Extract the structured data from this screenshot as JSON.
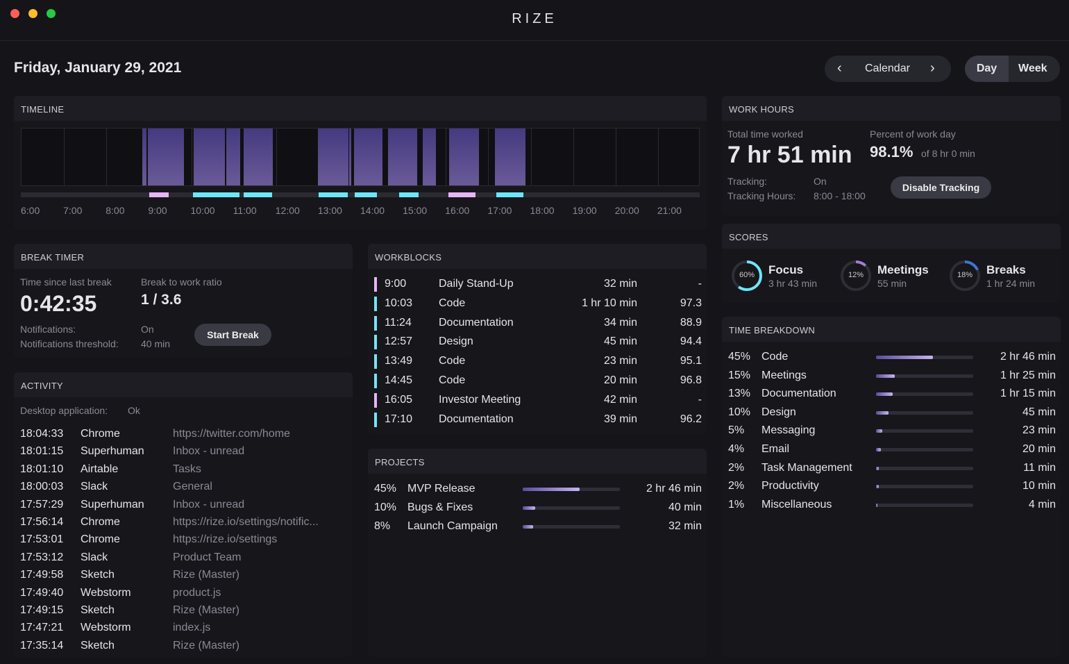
{
  "app": {
    "title": "RIZE"
  },
  "header": {
    "date": "Friday, January 29, 2021",
    "calendar": "Calendar",
    "day": "Day",
    "week": "Week"
  },
  "timeline": {
    "title": "TIMELINE",
    "hours": [
      "6:00",
      "7:00",
      "8:00",
      "9:00",
      "10:00",
      "11:00",
      "12:00",
      "13:00",
      "14:00",
      "15:00",
      "16:00",
      "17:00",
      "18:00",
      "19:00",
      "20:00",
      "21:00"
    ],
    "blocks": [
      [
        8.85,
        8.95
      ],
      [
        8.98,
        9.83
      ],
      [
        10.05,
        10.8
      ],
      [
        10.83,
        11.15
      ],
      [
        11.23,
        11.93
      ],
      [
        12.98,
        13.7
      ],
      [
        13.73,
        13.77
      ],
      [
        13.83,
        14.5
      ],
      [
        14.63,
        15.33
      ],
      [
        15.45,
        15.77
      ],
      [
        16.07,
        16.78
      ],
      [
        17.15,
        17.87
      ]
    ],
    "events": [
      {
        "start": 9.02,
        "end": 9.48,
        "type": "meeting"
      },
      {
        "start": 10.05,
        "end": 11.15,
        "type": "focus"
      },
      {
        "start": 11.25,
        "end": 11.92,
        "type": "focus"
      },
      {
        "start": 13.02,
        "end": 13.7,
        "type": "focus"
      },
      {
        "start": 13.87,
        "end": 14.4,
        "type": "focus"
      },
      {
        "start": 14.92,
        "end": 15.37,
        "type": "focus"
      },
      {
        "start": 16.07,
        "end": 16.72,
        "type": "meeting"
      },
      {
        "start": 17.2,
        "end": 17.85,
        "type": "focus"
      }
    ],
    "colors": {
      "focus": "#6ee6f7",
      "meeting": "#e6b6f4",
      "block": "#4f4388"
    }
  },
  "work_hours": {
    "title": "WORK HOURS",
    "total_label": "Total time worked",
    "total": "7 hr 51 min",
    "percent_label": "Percent of work day",
    "percent": "98.1%",
    "of": "of 8 hr 0 min",
    "tracking_label": "Tracking:",
    "tracking": "On",
    "hours_label": "Tracking Hours:",
    "hours": "8:00 - 18:00",
    "button": "Disable Tracking"
  },
  "scores": {
    "title": "SCORES",
    "items": [
      {
        "pct": "60%",
        "value": 60,
        "name": "Focus",
        "time": "3 hr 43 min",
        "color": "#6ee6f7"
      },
      {
        "pct": "12%",
        "value": 12,
        "name": "Meetings",
        "time": "55 min",
        "color": "#a57ad8"
      },
      {
        "pct": "18%",
        "value": 18,
        "name": "Breaks",
        "time": "1 hr 24 min",
        "color": "#3f74d6"
      }
    ]
  },
  "break_timer": {
    "title": "BREAK TIMER",
    "since_label": "Time since last break",
    "since": "0:42:35",
    "ratio_label": "Break to work ratio",
    "ratio": "1 / 3.6",
    "notif_label": "Notifications:",
    "notif": "On",
    "thresh_label": "Notifications threshold:",
    "thresh": "40 min",
    "button": "Start Break"
  },
  "workblocks": {
    "title": "WORKBLOCKS",
    "rows": [
      {
        "time": "9:00",
        "name": "Daily Stand-Up",
        "dur": "32 min",
        "score": "-",
        "type": "meeting"
      },
      {
        "time": "10:03",
        "name": "Code",
        "dur": "1 hr 10 min",
        "score": "97.3",
        "type": "focus"
      },
      {
        "time": "11:24",
        "name": "Documentation",
        "dur": "34 min",
        "score": "88.9",
        "type": "focus"
      },
      {
        "time": "12:57",
        "name": "Design",
        "dur": "45 min",
        "score": "94.4",
        "type": "focus"
      },
      {
        "time": "13:49",
        "name": "Code",
        "dur": "23 min",
        "score": "95.1",
        "type": "focus"
      },
      {
        "time": "14:45",
        "name": "Code",
        "dur": "20 min",
        "score": "96.8",
        "type": "focus"
      },
      {
        "time": "16:05",
        "name": "Investor Meeting",
        "dur": "42 min",
        "score": "-",
        "type": "meeting"
      },
      {
        "time": "17:10",
        "name": "Documentation",
        "dur": "39 min",
        "score": "96.2",
        "type": "focus"
      }
    ]
  },
  "projects": {
    "title": "PROJECTS",
    "rows": [
      {
        "pct": "45%",
        "value": 45,
        "name": "MVP Release",
        "dur": "2 hr 46 min"
      },
      {
        "pct": "10%",
        "value": 10,
        "name": "Bugs & Fixes",
        "dur": "40 min"
      },
      {
        "pct": "8%",
        "value": 8,
        "name": "Launch Campaign",
        "dur": "32 min"
      }
    ]
  },
  "activity": {
    "title": "ACTIVITY",
    "desktop_label": "Desktop application:",
    "desktop": "Ok",
    "rows": [
      [
        "18:04:33",
        "Chrome",
        "https://twitter.com/home"
      ],
      [
        "18:01:15",
        "Superhuman",
        "Inbox - unread"
      ],
      [
        "18:01:10",
        "Airtable",
        "Tasks"
      ],
      [
        "18:00:03",
        "Slack",
        "General"
      ],
      [
        "17:57:29",
        "Superhuman",
        "Inbox - unread"
      ],
      [
        "17:56:14",
        "Chrome",
        "https://rize.io/settings/notific..."
      ],
      [
        "17:53:01",
        "Chrome",
        "https://rize.io/settings"
      ],
      [
        "17:53:12",
        "Slack",
        "Product Team"
      ],
      [
        "17:49:58",
        "Sketch",
        "Rize (Master)"
      ],
      [
        "17:49:40",
        "Webstorm",
        "product.js"
      ],
      [
        "17:49:15",
        "Sketch",
        "Rize (Master)"
      ],
      [
        "17:47:21",
        "Webstorm",
        "index.js"
      ],
      [
        "17:35:14",
        "Sketch",
        "Rize (Master)"
      ]
    ]
  },
  "breakdown": {
    "title": "TIME BREAKDOWN",
    "rows": [
      {
        "pct": "45%",
        "value": 45,
        "name": "Code",
        "dur": "2 hr 46 min"
      },
      {
        "pct": "15%",
        "value": 15,
        "name": "Meetings",
        "dur": "1 hr 25 min"
      },
      {
        "pct": "13%",
        "value": 13,
        "name": "Documentation",
        "dur": "1 hr 15 min"
      },
      {
        "pct": "10%",
        "value": 10,
        "name": "Design",
        "dur": "45 min"
      },
      {
        "pct": "5%",
        "value": 5,
        "name": "Messaging",
        "dur": "23 min"
      },
      {
        "pct": "4%",
        "value": 4,
        "name": "Email",
        "dur": "20 min"
      },
      {
        "pct": "2%",
        "value": 2,
        "name": "Task Management",
        "dur": "11 min"
      },
      {
        "pct": "2%",
        "value": 2,
        "name": "Productivity",
        "dur": "10 min"
      },
      {
        "pct": "1%",
        "value": 1,
        "name": "Miscellaneous",
        "dur": "4 min"
      }
    ]
  }
}
